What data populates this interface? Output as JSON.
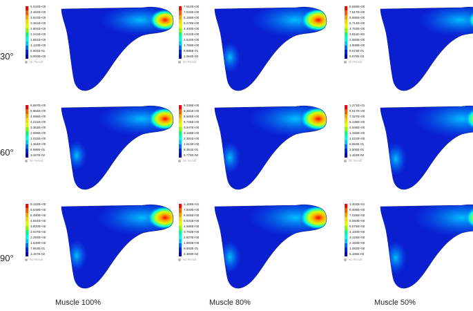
{
  "row_labels": [
    "30°",
    "60°",
    "90°"
  ],
  "col_labels": [
    "Muscle 100%",
    "Muscle 80%",
    "Muscle 50%"
  ],
  "legend_colors": [
    "#ff0000",
    "#ff5a00",
    "#ffa000",
    "#ffd500",
    "#d7ff00",
    "#7fff00",
    "#00ff7a",
    "#00ffe0",
    "#00c8ff",
    "#0068ff",
    "#0022e8",
    "#0000b8"
  ],
  "no_result_color": "#b5b5b5",
  "panels": [
    {
      "legend": {
        "ticks": [
          "5.042E+00",
          "4.482E+00",
          "3.922E+00",
          "3.361E+00",
          "2.801E+00",
          "2.241E+00",
          "1.681E+00",
          "1.120E+00",
          "5.602E-01",
          "0.000E+00"
        ],
        "no_result": "No Result"
      }
    },
    {
      "legend": {
        "ticks": [
          "7.912E+00",
          "7.034E+00",
          "6.156E+00",
          "5.278E+00",
          "4.400E+00",
          "3.522E+00",
          "2.644E+00",
          "1.766E+00",
          "8.886E-01",
          "1.064E-02"
        ],
        "no_result": "No Result"
      }
    },
    {
      "legend": {
        "ticks": [
          "8.568E+00",
          "7.617E+00",
          "6.665E+00",
          "5.714E+00",
          "4.763E+00",
          "3.811E+00",
          "2.860E+00",
          "1.909E+00",
          "9.573E-01",
          "5.978E-03"
        ],
        "no_result": "No Result"
      }
    },
    {
      "legend": {
        "ticks": [
          "6.687E+00",
          "5.964E+00",
          "4.698E+00",
          "4.031E+00",
          "3.363E+00",
          "2.699E+00",
          "2.032E+00",
          "1.364E+00",
          "6.996E-01",
          "3.327E-02"
        ],
        "no_result": "No Result"
      }
    },
    {
      "legend": {
        "ticks": [
          "9.239E+00",
          "8.281E+00",
          "6.565E+00",
          "6.725E+00",
          "3.947E+00",
          "3.169E+00",
          "2.391E+00",
          "1.613E+00",
          "8.351E-01",
          "5.774E-02"
        ],
        "no_result": "No Result"
      }
    },
    {
      "legend": {
        "ticks": [
          "1.271E+01",
          "9.517E+00",
          "7.327E+00",
          "5.138E+00",
          "2.948E+00",
          "1.258E+00",
          "1.022E+00",
          "6.863E-01",
          "3.505E-01",
          "1.462E-02"
        ],
        "no_result": "No Result"
      }
    },
    {
      "legend": {
        "ticks": [
          "9.132E+00",
          "8.549E+00",
          "6.480E+00",
          "4.554E+00",
          "3.800E+00",
          "3.047E+00",
          "2.293E+00",
          "1.539E+00",
          "7.853E-01",
          "3.157E-02"
        ],
        "no_result": "No Result"
      }
    },
    {
      "legend": {
        "ticks": [
          "1.158E+01",
          "7.500E+00",
          "6.565E+00",
          "5.631E+00",
          "4.696E+00",
          "3.762E+00",
          "2.827E+00",
          "1.893E+00",
          "9.583E-01",
          "2.380E-02"
        ],
        "no_result": "No Result"
      }
    },
    {
      "legend": {
        "ticks": [
          "1.402E+01",
          "8.008E+00",
          "7.025E+00",
          "6.050E+00",
          "5.075E+00",
          "4.100E+00",
          "3.125E+00",
          "2.150E+00",
          "1.082E+00",
          "6.185E-03"
        ],
        "no_result": "No Result"
      }
    }
  ]
}
